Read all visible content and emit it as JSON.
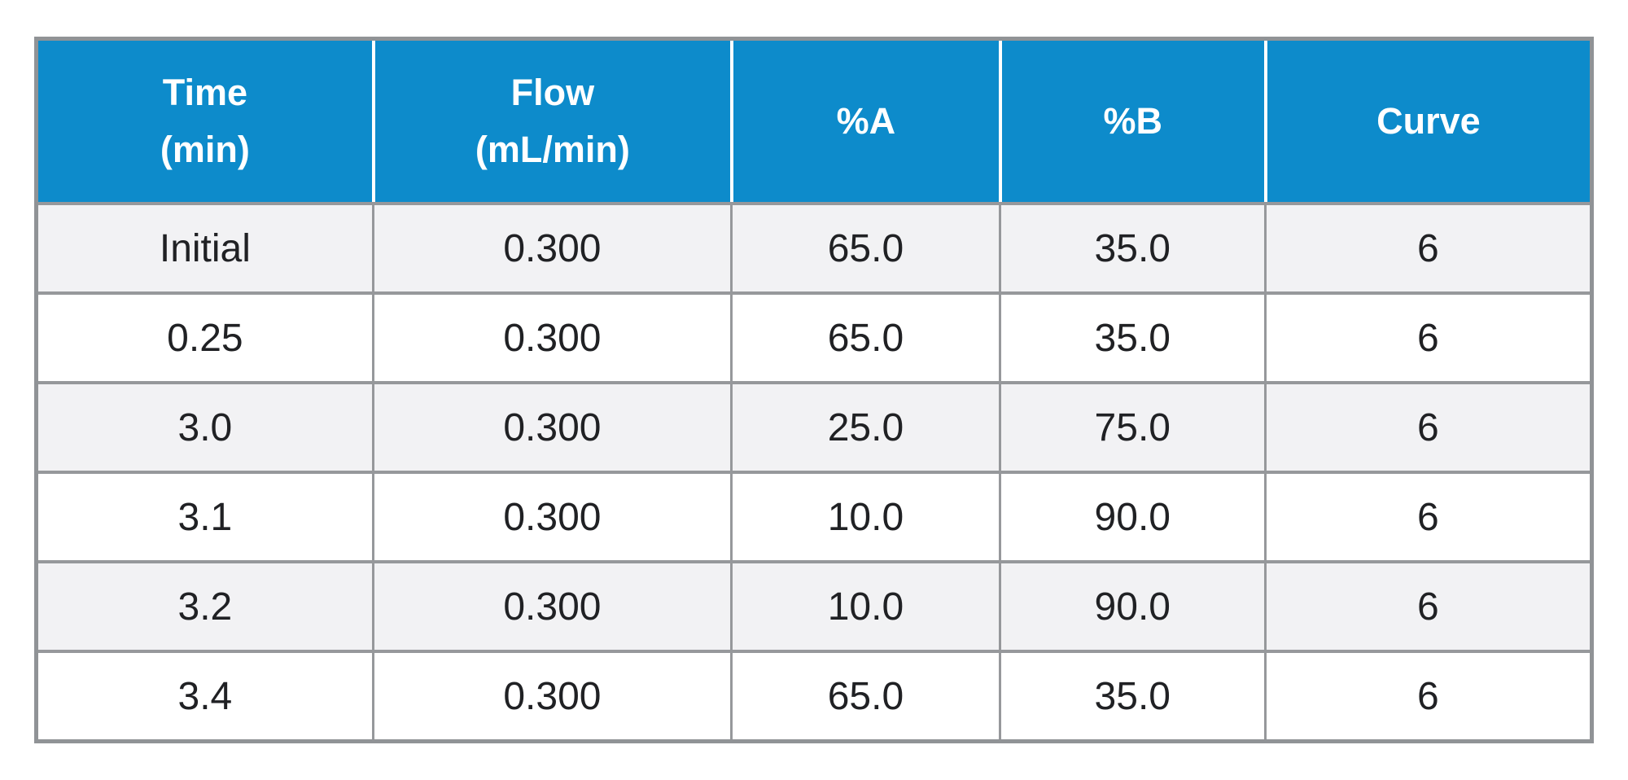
{
  "colors": {
    "header_bg": "#0d8bcb",
    "header_text": "#ffffff",
    "header_divider": "#ffffff",
    "row_alt_bg": "#f2f2f4",
    "row_bg": "#ffffff",
    "border": "#909396",
    "row_line": "#96989b",
    "body_text": "#202124",
    "page_bg": "#ffffff"
  },
  "table": {
    "columns": [
      {
        "id": "time",
        "label": "Time\n(min)"
      },
      {
        "id": "flow",
        "label": "Flow\n(mL/min)"
      },
      {
        "id": "percent_a",
        "label": "%A"
      },
      {
        "id": "percent_b",
        "label": "%B"
      },
      {
        "id": "curve",
        "label": "Curve"
      }
    ],
    "rows": [
      [
        "Initial",
        "0.300",
        "65.0",
        "35.0",
        "6"
      ],
      [
        "0.25",
        "0.300",
        "65.0",
        "35.0",
        "6"
      ],
      [
        "3.0",
        "0.300",
        "25.0",
        "75.0",
        "6"
      ],
      [
        "3.1",
        "0.300",
        "10.0",
        "90.0",
        "6"
      ],
      [
        "3.2",
        "0.300",
        "10.0",
        "90.0",
        "6"
      ],
      [
        "3.4",
        "0.300",
        "65.0",
        "35.0",
        "6"
      ]
    ]
  }
}
